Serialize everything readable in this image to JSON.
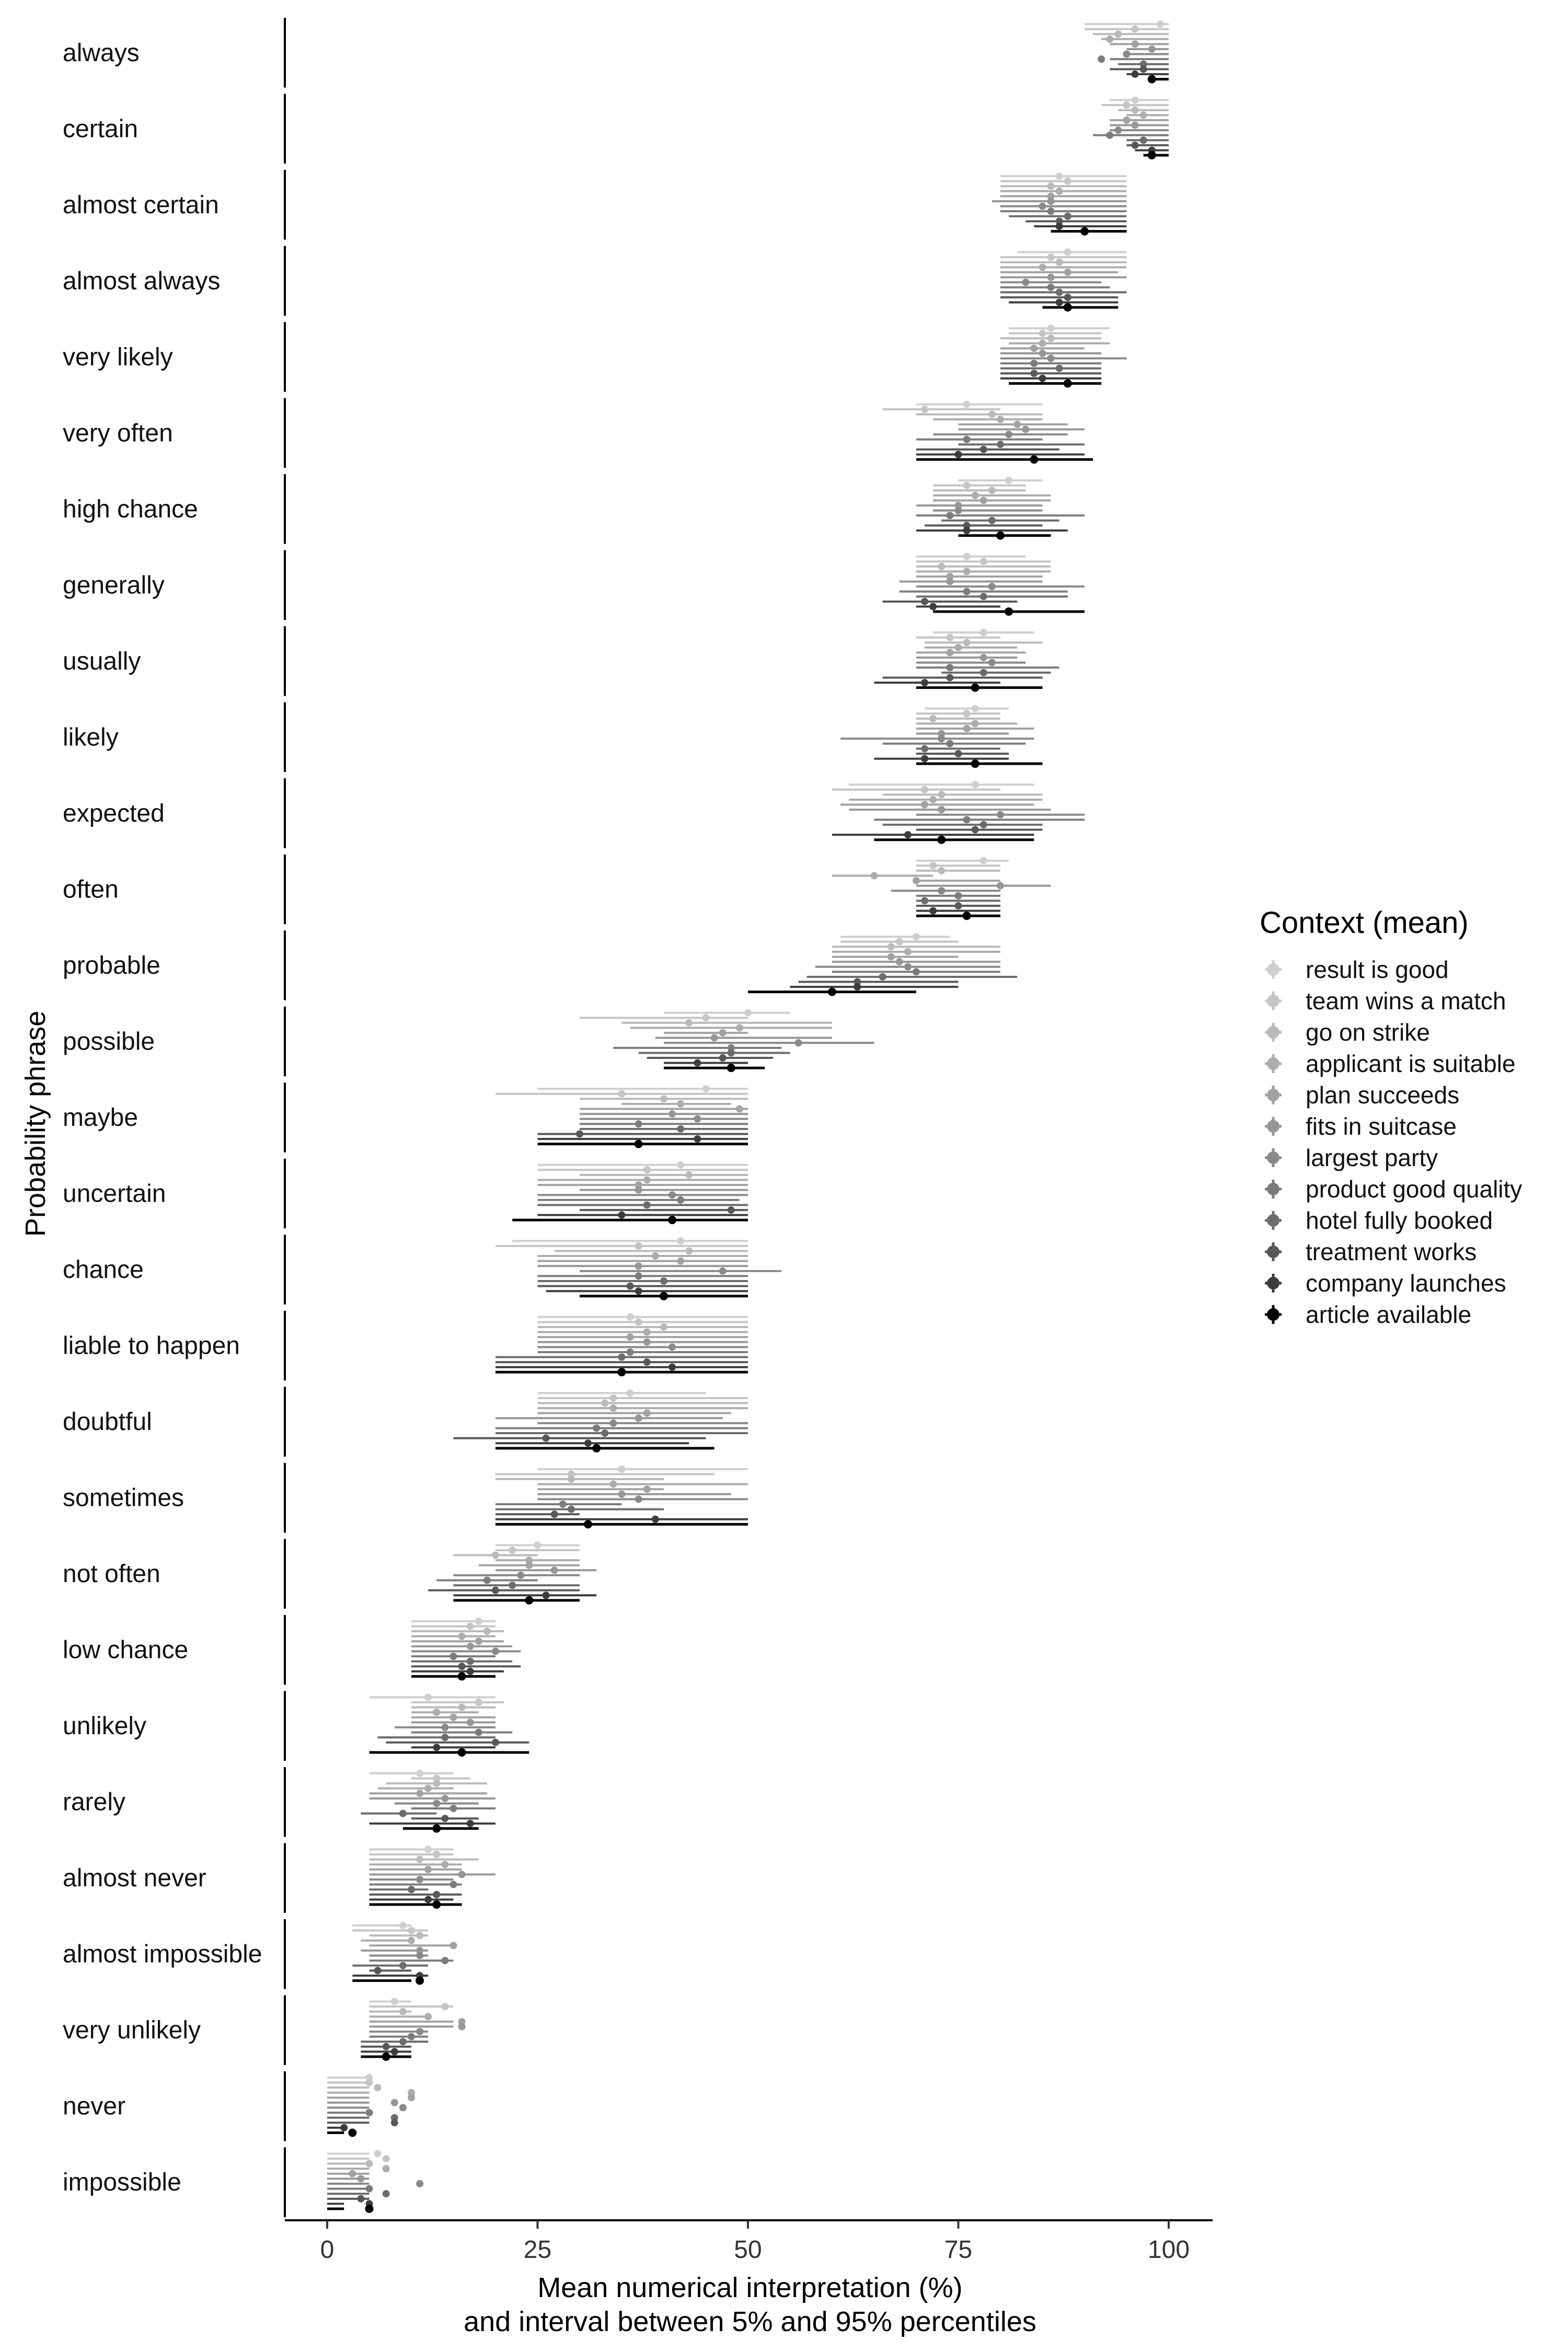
{
  "chart_data": {
    "type": "scatter",
    "subtype": "dot-and-interval (5%–95% percentile)",
    "xlabel_line1": "Mean numerical interpretation (%)",
    "xlabel_line2": "and interval between 5% and 95% percentiles",
    "ylabel": "Probability phrase",
    "xlim": [
      -5,
      105
    ],
    "x_ticks": [
      "0",
      "25",
      "50",
      "75",
      "100"
    ],
    "x_tick_values": [
      0,
      25,
      50,
      75,
      100
    ],
    "grid": false,
    "legend_position": "right",
    "legend_title": "Context (mean)",
    "series": [
      {
        "name": "result is good",
        "color": "#cfcfcf"
      },
      {
        "name": "team wins a match",
        "color": "#c5c5c5"
      },
      {
        "name": "go on strike",
        "color": "#bababa"
      },
      {
        "name": "applicant is suitable",
        "color": "#adadad"
      },
      {
        "name": "plan succeeds",
        "color": "#a2a2a2"
      },
      {
        "name": "fits in suitcase",
        "color": "#979797"
      },
      {
        "name": "largest party",
        "color": "#8a8a8a"
      },
      {
        "name": "product good quality",
        "color": "#7c7c7c"
      },
      {
        "name": "hotel fully booked",
        "color": "#6c6c6c"
      },
      {
        "name": "treatment works",
        "color": "#585858"
      },
      {
        "name": "company launches",
        "color": "#3c3c3c"
      },
      {
        "name": "article available",
        "color": "#000000"
      }
    ],
    "phrases": [
      {
        "label": "always",
        "means": [
          99,
          96,
          94,
          93,
          96,
          98,
          95,
          92,
          97,
          97,
          96,
          98
        ],
        "lo": [
          90,
          90,
          91,
          92,
          93,
          95,
          95,
          93,
          94,
          93,
          95,
          98
        ],
        "hi": [
          100,
          100,
          100,
          100,
          100,
          100,
          100,
          100,
          100,
          100,
          100,
          100
        ]
      },
      {
        "label": "certain",
        "means": [
          96,
          95,
          96,
          97,
          95,
          96,
          94,
          93,
          97,
          96,
          98,
          98
        ],
        "lo": [
          93,
          92,
          94,
          95,
          93,
          93,
          93,
          91,
          95,
          95,
          96,
          97
        ],
        "hi": [
          100,
          100,
          100,
          100,
          100,
          100,
          100,
          100,
          100,
          100,
          100,
          100
        ]
      },
      {
        "label": "almost certain",
        "means": [
          87,
          88,
          86,
          87,
          86,
          86,
          85,
          86,
          88,
          87,
          87,
          90
        ],
        "lo": [
          80,
          80,
          80,
          80,
          80,
          79,
          80,
          80,
          81,
          83,
          84,
          86
        ],
        "hi": [
          95,
          95,
          95,
          95,
          95,
          95,
          95,
          95,
          95,
          95,
          95,
          95
        ]
      },
      {
        "label": "almost always",
        "means": [
          88,
          86,
          87,
          85,
          88,
          86,
          83,
          86,
          87,
          88,
          87,
          88
        ],
        "lo": [
          82,
          80,
          80,
          80,
          80,
          80,
          80,
          80,
          80,
          80,
          81,
          85
        ],
        "hi": [
          95,
          95,
          95,
          95,
          94,
          95,
          92,
          93,
          95,
          94,
          94,
          94
        ]
      },
      {
        "label": "very likely",
        "means": [
          86,
          85,
          86,
          85,
          84,
          85,
          86,
          84,
          87,
          84,
          85,
          88
        ],
        "lo": [
          81,
          81,
          80,
          81,
          80,
          80,
          80,
          80,
          80,
          80,
          80,
          81
        ],
        "hi": [
          93,
          92,
          92,
          93,
          90,
          92,
          95,
          92,
          92,
          92,
          92,
          92
        ]
      },
      {
        "label": "very often",
        "means": [
          76,
          71,
          79,
          80,
          82,
          83,
          81,
          76,
          80,
          78,
          75,
          84
        ],
        "lo": [
          70,
          66,
          70,
          72,
          75,
          75,
          72,
          70,
          75,
          70,
          70,
          70
        ],
        "hi": [
          85,
          80,
          85,
          85,
          88,
          90,
          88,
          85,
          90,
          87,
          90,
          91
        ]
      },
      {
        "label": "high chance",
        "means": [
          81,
          76,
          79,
          77,
          78,
          75,
          75,
          74,
          79,
          76,
          76,
          80
        ],
        "lo": [
          75,
          72,
          72,
          72,
          72,
          70,
          72,
          70,
          73,
          71,
          70,
          75
        ],
        "hi": [
          85,
          83,
          83,
          86,
          86,
          85,
          85,
          90,
          87,
          85,
          88,
          86
        ]
      },
      {
        "label": "generally",
        "means": [
          76,
          78,
          73,
          76,
          74,
          74,
          79,
          76,
          78,
          71,
          72,
          81
        ],
        "lo": [
          70,
          70,
          70,
          70,
          70,
          68,
          70,
          68,
          70,
          66,
          70,
          72
        ],
        "hi": [
          83,
          86,
          86,
          86,
          85,
          85,
          90,
          88,
          88,
          82,
          80,
          90
        ]
      },
      {
        "label": "usually",
        "means": [
          78,
          74,
          76,
          75,
          74,
          78,
          79,
          74,
          78,
          74,
          71,
          77
        ],
        "lo": [
          72,
          70,
          71,
          71,
          70,
          70,
          70,
          70,
          73,
          66,
          65,
          70
        ],
        "hi": [
          84,
          80,
          85,
          82,
          83,
          82,
          83,
          87,
          86,
          85,
          80,
          85
        ]
      },
      {
        "label": "likely",
        "means": [
          77,
          76,
          72,
          77,
          76,
          73,
          73,
          74,
          71,
          75,
          71,
          77
        ],
        "lo": [
          71,
          70,
          70,
          70,
          70,
          70,
          61,
          66,
          70,
          70,
          65,
          70
        ],
        "hi": [
          81,
          80,
          80,
          82,
          84,
          81,
          84,
          83,
          80,
          81,
          81,
          85
        ]
      },
      {
        "label": "expected",
        "means": [
          77,
          71,
          73,
          72,
          71,
          73,
          80,
          76,
          78,
          77,
          69,
          73
        ],
        "lo": [
          62,
          60,
          66,
          62,
          61,
          62,
          70,
          65,
          66,
          70,
          60,
          65
        ],
        "hi": [
          84,
          80,
          85,
          85,
          84,
          86,
          90,
          90,
          85,
          85,
          84,
          84
        ]
      },
      {
        "label": "often",
        "means": [
          78,
          72,
          73,
          65,
          70,
          80,
          73,
          75,
          71,
          75,
          72,
          76
        ],
        "lo": [
          70,
          70,
          70,
          60,
          70,
          70,
          67,
          70,
          70,
          70,
          70,
          70
        ],
        "hi": [
          81,
          80,
          80,
          72,
          80,
          86,
          80,
          80,
          80,
          80,
          80,
          80
        ]
      },
      {
        "label": "probable",
        "means": [
          70,
          68,
          67,
          69,
          67,
          68,
          69,
          70,
          66,
          63,
          63,
          60
        ],
        "lo": [
          61,
          61,
          60,
          60,
          60,
          60,
          58,
          60,
          57,
          56,
          55,
          50
        ],
        "hi": [
          74,
          75,
          80,
          80,
          75,
          80,
          80,
          80,
          82,
          75,
          75,
          70
        ]
      },
      {
        "label": "possible",
        "means": [
          50,
          45,
          43,
          49,
          47,
          46,
          56,
          48,
          48,
          47,
          44,
          48
        ],
        "lo": [
          40,
          30,
          35,
          36,
          40,
          39,
          40,
          34,
          37,
          38,
          40,
          40
        ],
        "hi": [
          55,
          50,
          60,
          60,
          50,
          60,
          65,
          54,
          55,
          53,
          50,
          52
        ]
      },
      {
        "label": "maybe",
        "means": [
          45,
          35,
          40,
          42,
          49,
          41,
          44,
          37,
          42,
          30,
          44,
          37
        ],
        "lo": [
          25,
          20,
          30,
          35,
          30,
          30,
          30,
          30,
          30,
          25,
          25,
          25
        ],
        "hi": [
          50,
          50,
          50,
          48,
          50,
          50,
          50,
          50,
          50,
          50,
          50,
          50
        ]
      },
      {
        "label": "uncertain",
        "means": [
          42,
          38,
          43,
          38,
          37,
          37,
          41,
          42,
          38,
          48,
          35,
          41
        ],
        "lo": [
          25,
          25,
          30,
          25,
          25,
          30,
          25,
          25,
          25,
          30,
          25,
          22
        ],
        "hi": [
          50,
          50,
          50,
          50,
          50,
          50,
          50,
          49,
          50,
          50,
          50,
          50
        ]
      },
      {
        "label": "chance",
        "means": [
          42,
          37,
          43,
          39,
          42,
          37,
          47,
          37,
          40,
          36,
          37,
          40
        ],
        "lo": [
          22,
          20,
          27,
          25,
          25,
          25,
          30,
          25,
          25,
          25,
          26,
          30
        ],
        "hi": [
          50,
          50,
          50,
          50,
          50,
          50,
          54,
          50,
          50,
          50,
          50,
          50
        ]
      },
      {
        "label": "liable to happen",
        "means": [
          36,
          37,
          40,
          38,
          36,
          38,
          41,
          36,
          35,
          38,
          41,
          35
        ],
        "lo": [
          25,
          25,
          25,
          25,
          25,
          25,
          25,
          25,
          20,
          20,
          20,
          20
        ],
        "hi": [
          50,
          50,
          50,
          50,
          50,
          50,
          50,
          50,
          50,
          50,
          50,
          50
        ]
      },
      {
        "label": "doubtful",
        "means": [
          36,
          34,
          33,
          34,
          38,
          37,
          34,
          32,
          33,
          26,
          31,
          32
        ],
        "lo": [
          25,
          25,
          25,
          25,
          25,
          20,
          25,
          20,
          20,
          15,
          20,
          20
        ],
        "hi": [
          45,
          50,
          50,
          50,
          48,
          47,
          50,
          50,
          50,
          45,
          43,
          46
        ]
      },
      {
        "label": "sometimes",
        "means": [
          35,
          29,
          29,
          34,
          38,
          35,
          37,
          28,
          29,
          27,
          39,
          31
        ],
        "lo": [
          25,
          20,
          20,
          25,
          25,
          25,
          25,
          20,
          20,
          20,
          20,
          20
        ],
        "hi": [
          50,
          46,
          40,
          50,
          40,
          48,
          50,
          35,
          40,
          30,
          50,
          50
        ]
      },
      {
        "label": "not often",
        "means": [
          25,
          22,
          20,
          24,
          24,
          27,
          23,
          19,
          22,
          20,
          26,
          24
        ],
        "lo": [
          20,
          20,
          15,
          20,
          18,
          20,
          15,
          13,
          15,
          12,
          15,
          15
        ],
        "hi": [
          30,
          30,
          25,
          30,
          30,
          32,
          30,
          25,
          30,
          30,
          32,
          30
        ]
      },
      {
        "label": "low chance",
        "means": [
          18,
          17,
          19,
          16,
          18,
          17,
          20,
          15,
          17,
          16,
          17,
          16
        ],
        "lo": [
          10,
          10,
          10,
          10,
          10,
          10,
          10,
          10,
          10,
          10,
          10,
          10
        ],
        "hi": [
          20,
          20,
          21,
          20,
          21,
          22,
          23,
          20,
          22,
          23,
          21,
          20
        ]
      },
      {
        "label": "unlikely",
        "means": [
          12,
          18,
          16,
          13,
          15,
          17,
          14,
          18,
          14,
          20,
          13,
          16
        ],
        "lo": [
          5,
          10,
          10,
          10,
          10,
          10,
          8,
          10,
          6,
          7,
          10,
          5
        ],
        "hi": [
          20,
          21,
          20,
          18,
          20,
          20,
          20,
          22,
          20,
          24,
          20,
          24
        ]
      },
      {
        "label": "rarely",
        "means": [
          11,
          13,
          13,
          12,
          11,
          14,
          13,
          15,
          9,
          14,
          17,
          13
        ],
        "lo": [
          5,
          10,
          7,
          6,
          5,
          5,
          8,
          10,
          4,
          10,
          5,
          9
        ],
        "hi": [
          15,
          17,
          19,
          15,
          19,
          20,
          18,
          20,
          13,
          18,
          20,
          18
        ]
      },
      {
        "label": "almost never",
        "means": [
          12,
          13,
          11,
          14,
          12,
          16,
          11,
          15,
          10,
          13,
          12,
          13
        ],
        "lo": [
          5,
          5,
          5,
          5,
          5,
          5,
          5,
          5,
          5,
          5,
          5,
          5
        ],
        "hi": [
          15,
          15,
          18,
          16,
          16,
          20,
          15,
          16,
          12,
          16,
          15,
          16
        ]
      },
      {
        "label": "almost impossible",
        "means": [
          9,
          10,
          11,
          10,
          15,
          11,
          11,
          14,
          9,
          6,
          11,
          11
        ],
        "lo": [
          3,
          3,
          5,
          4,
          5,
          4,
          5,
          5,
          3,
          5,
          3,
          3
        ],
        "hi": [
          10,
          12,
          12,
          10,
          15,
          12,
          12,
          15,
          12,
          10,
          12,
          10
        ]
      },
      {
        "label": "very unlikely",
        "means": [
          8,
          14,
          9,
          12,
          16,
          16,
          11,
          10,
          9,
          7,
          8,
          7
        ],
        "lo": [
          5,
          5,
          5,
          5,
          5,
          5,
          5,
          5,
          4,
          4,
          4,
          4
        ],
        "hi": [
          10,
          15,
          10,
          12,
          15,
          15,
          12,
          12,
          12,
          10,
          10,
          10
        ]
      },
      {
        "label": "never",
        "means": [
          5,
          5,
          6,
          10,
          10,
          8,
          9,
          5,
          8,
          8,
          2,
          3
        ],
        "lo": [
          0,
          0,
          0,
          0,
          0,
          0,
          0,
          0,
          0,
          0,
          0,
          0
        ],
        "hi": [
          5,
          5,
          5,
          5,
          5,
          5,
          5,
          5,
          5,
          5,
          2,
          2
        ]
      },
      {
        "label": "impossible",
        "means": [
          6,
          7,
          5,
          7,
          3,
          4,
          11,
          5,
          7,
          4,
          5,
          5
        ],
        "lo": [
          0,
          0,
          0,
          0,
          0,
          0,
          0,
          0,
          0,
          0,
          0,
          0
        ],
        "hi": [
          5,
          5,
          5,
          5,
          5,
          5,
          5,
          5,
          5,
          5,
          2,
          2
        ]
      }
    ]
  }
}
